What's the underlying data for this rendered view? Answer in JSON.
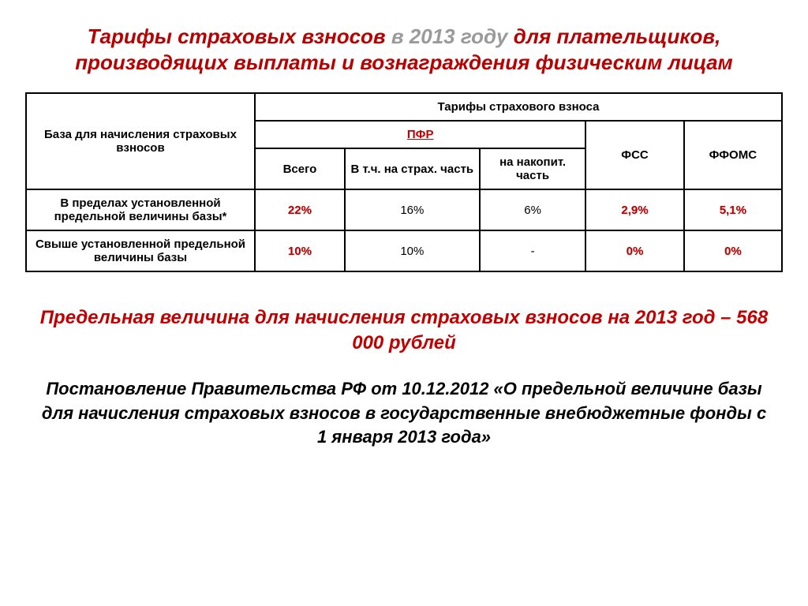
{
  "title": {
    "part1": "Тарифы страховых взносов ",
    "year": "в 2013 году",
    "part2": " для плательщиков, производящих выплаты и вознаграждения физическим лицам"
  },
  "table": {
    "header": {
      "base_label": "База для начисления страховых взносов",
      "tariffs_label": "Тарифы страхового взноса",
      "pfr": "ПФР",
      "fss": "ФСС",
      "ffoms": "ФФОМС",
      "pfr_total": "Всего",
      "pfr_strah": "В т.ч. на страх. часть",
      "pfr_nakop": "на накопит. часть"
    },
    "rows": [
      {
        "label": "В пределах установленной предельной величины базы*",
        "total": "22%",
        "strah": "16%",
        "nakop": "6%",
        "fss": "2,9%",
        "ffoms": "5,1%"
      },
      {
        "label": "Свыше установленной предельной величины базы",
        "total": "10%",
        "strah": "10%",
        "nakop": "-",
        "fss": "0%",
        "ffoms": "0%"
      }
    ],
    "col_widths": [
      "280px",
      "110px",
      "165px",
      "130px",
      "120px",
      "120px"
    ]
  },
  "limit_text": "Предельная величина для начисления страховых взносов на 2013 год – 568 000 рублей",
  "decree_text": "Постановление Правительства РФ от 10.12.2012 «О предельной величине базы для начисления страховых взносов в государственные внебюджетные фонды с 1 января 2013 года»",
  "colors": {
    "accent_red": "#c00000",
    "title_red": "#b80000",
    "title_gray": "#9a9a9a",
    "border": "#000000",
    "background": "#ffffff"
  }
}
